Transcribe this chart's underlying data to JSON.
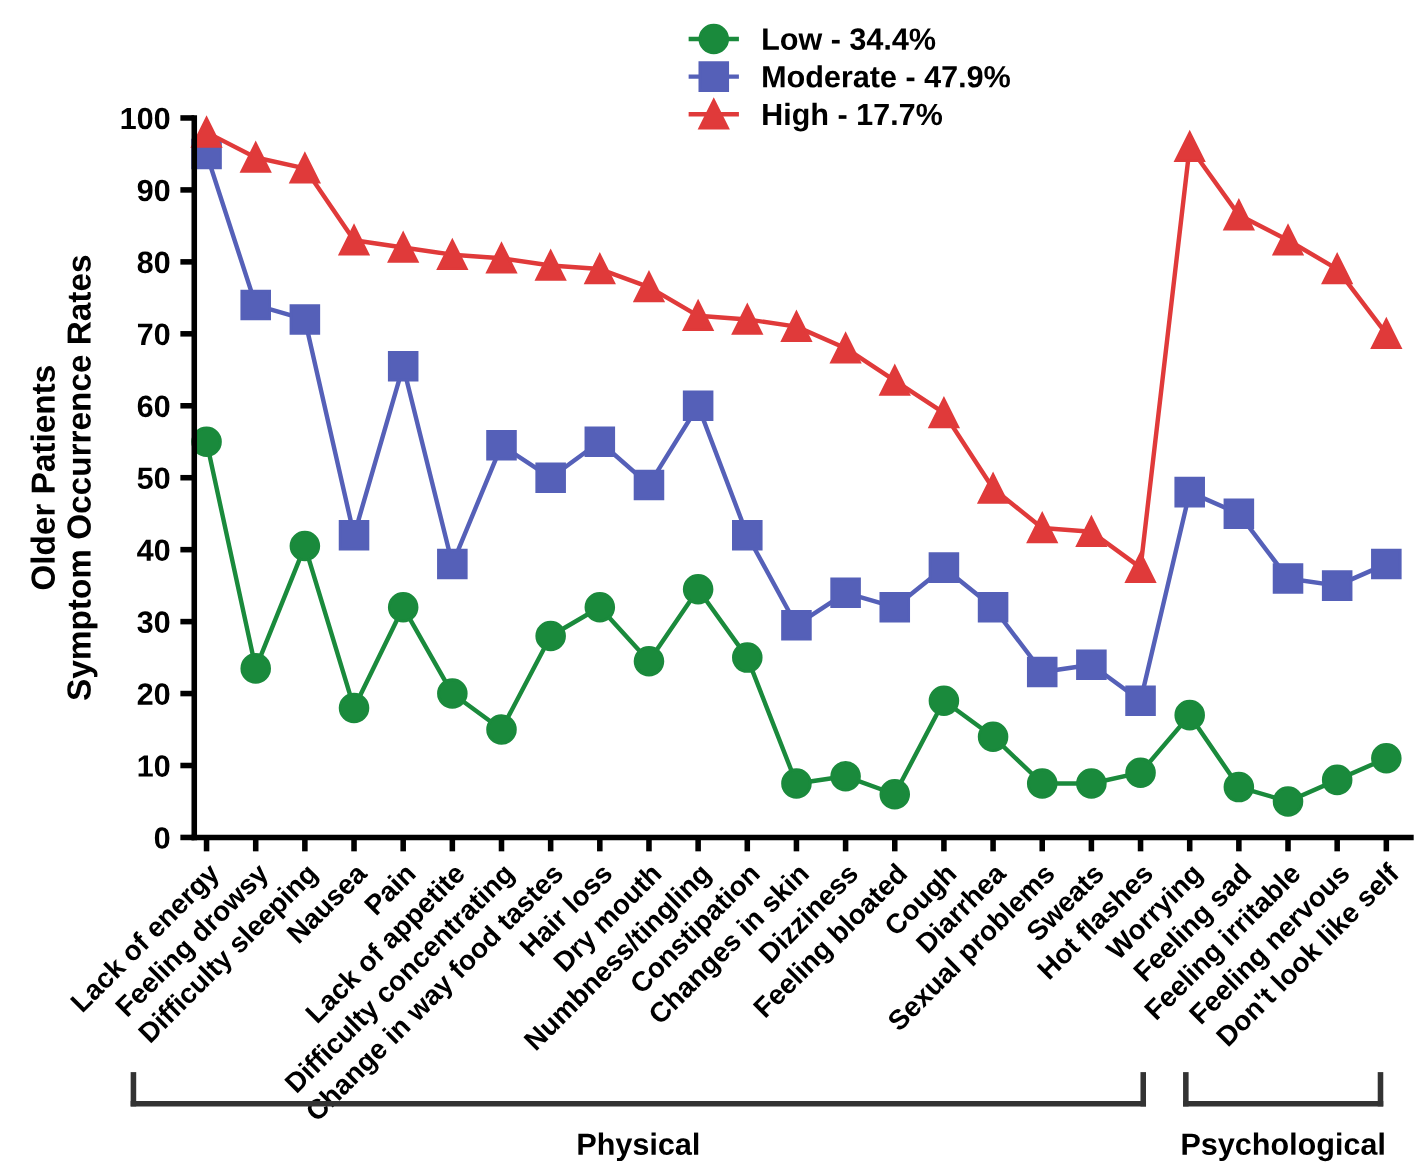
{
  "chart_data": {
    "type": "line",
    "ylabel": "Older Patients\nSymptom Occurrence Rates",
    "categories": [
      "Lack of energy",
      "Feeling drowsy",
      "Difficulty sleeping",
      "Nausea",
      "Pain",
      "Lack of appetite",
      "Difficulty concentrating",
      "Change in way food tastes",
      "Hair loss",
      "Dry mouth",
      "Numbness/tingling",
      "Constipation",
      "Changes in skin",
      "Dizziness",
      "Feeling bloated",
      "Cough",
      "Diarrhea",
      "Sexual problems",
      "Sweats",
      "Hot flashes",
      "Worrying",
      "Feeling sad",
      "Feeling irritable",
      "Feeling nervous",
      "Don't look like self"
    ],
    "series": [
      {
        "name": "Low - 34.4%",
        "color": "#1a8a3c",
        "marker": "circle",
        "values": [
          55,
          23.5,
          40.5,
          18,
          32,
          20,
          15,
          28,
          32,
          24.5,
          34.5,
          25,
          7.5,
          8.5,
          6,
          19,
          14,
          7.5,
          7.5,
          9,
          17,
          7,
          5,
          8,
          11
        ]
      },
      {
        "name": "Moderate - 47.9%",
        "color": "#5560b8",
        "marker": "square",
        "values": [
          95,
          74,
          72,
          42,
          65.5,
          38,
          54.5,
          50,
          55,
          49,
          60,
          42,
          29.5,
          34,
          32,
          37.5,
          32,
          23,
          24,
          19,
          48,
          45,
          36,
          35,
          38
        ]
      },
      {
        "name": "High - 17.7%",
        "color": "#e03a3a",
        "marker": "triangle",
        "values": [
          98,
          94.5,
          93,
          83,
          82,
          81,
          80.5,
          79.5,
          79,
          76.5,
          72.5,
          72,
          71,
          68,
          63.5,
          59,
          48.5,
          43,
          42.5,
          37.5,
          96,
          86.5,
          83,
          79,
          70
        ]
      }
    ],
    "ylim": [
      0,
      100
    ],
    "yticks": [
      0,
      10,
      20,
      30,
      40,
      50,
      60,
      70,
      80,
      90,
      100
    ],
    "grid": false,
    "legend": "top",
    "line_style": "solid",
    "annotations": [
      "Physical",
      "Psychological"
    ]
  }
}
